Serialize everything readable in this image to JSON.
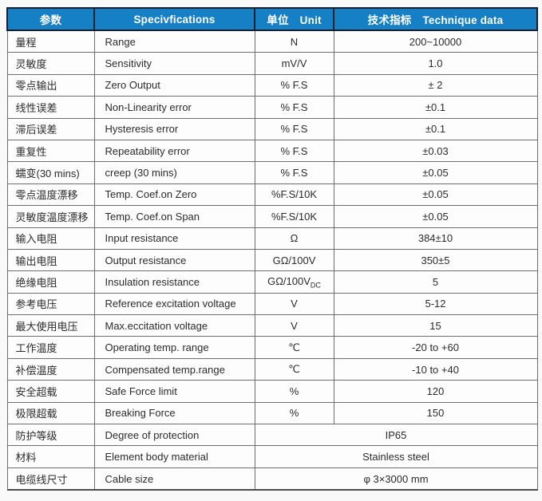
{
  "colors": {
    "header_bg": "#1580c5",
    "header_border": "#14202c",
    "grid": "#6e6e6e",
    "header_text": "#ffffff",
    "body_text": "#2b2b2b"
  },
  "header": {
    "param_zh": "参数",
    "spec_en": "Specivfications",
    "unit_zh": "单位",
    "unit_en": "Unit",
    "tech_zh": "技术指标",
    "tech_en": "Technique data"
  },
  "rows": [
    {
      "param": "量程",
      "spec": "Range",
      "unit": "N",
      "value": "200~10000"
    },
    {
      "param": "灵敏度",
      "spec": "Sensitivity",
      "unit": "mV/V",
      "value": "1.0"
    },
    {
      "param": "零点输出",
      "spec": "Zero Output",
      "unit": "% F.S",
      "value": "± 2"
    },
    {
      "param": "线性误差",
      "spec": "Non-Linearity error",
      "unit": "% F.S",
      "value": "±0.1"
    },
    {
      "param": "滞后误差",
      "spec": "Hysteresis error",
      "unit": "% F.S",
      "value": "±0.1"
    },
    {
      "param": "重复性",
      "spec": "Repeatability error",
      "unit": "% F.S",
      "value": "±0.03"
    },
    {
      "param": "蠕变(30 mins)",
      "spec": "creep (30 mins)",
      "unit": "% F.S",
      "value": "±0.05"
    },
    {
      "param": "零点温度漂移",
      "spec": "Temp. Coef.on Zero",
      "unit": "%F.S/10K",
      "value": "±0.05"
    },
    {
      "param": "灵敏度温度漂移",
      "spec": "Temp. Coef.on Span",
      "unit": "%F.S/10K",
      "value": "±0.05"
    },
    {
      "param": "输入电阻",
      "spec": "Input resistance",
      "unit": "Ω",
      "value": "384±10"
    },
    {
      "param": "输出电阻",
      "spec": "Output resistance",
      "unit": "GΩ/100V",
      "value": "350±5"
    },
    {
      "param": "绝缘电阻",
      "spec": "Insulation resistance",
      "unit": "GΩ/100V",
      "unit_sub": "DC",
      "value": "5"
    },
    {
      "param": "参考电压",
      "spec": "Reference excitation voltage",
      "unit": "V",
      "value": "5-12"
    },
    {
      "param": "最大使用电压",
      "spec": "Max.eccitation voltage",
      "unit": "V",
      "value": "15"
    },
    {
      "param": "工作温度",
      "spec": "Operating temp. range",
      "unit": "℃",
      "value": "-20 to +60"
    },
    {
      "param": "补偿温度",
      "spec": "Compensated temp.range",
      "unit": "℃",
      "value": "-10 to +40"
    },
    {
      "param": "安全超载",
      "spec": "Safe Force limit",
      "unit": "%",
      "value": "120"
    },
    {
      "param": "极限超载",
      "spec": "Breaking Force",
      "unit": "%",
      "value": "150"
    },
    {
      "param": "防护等级",
      "spec": "Degree of protection",
      "merged": true,
      "value": "IP65"
    },
    {
      "param": "材料",
      "spec": "Element body material",
      "merged": true,
      "value": "Stainless steel"
    },
    {
      "param": "电缆线尺寸",
      "spec": "Cable size",
      "merged": true,
      "value": "φ 3×3000 mm"
    }
  ]
}
